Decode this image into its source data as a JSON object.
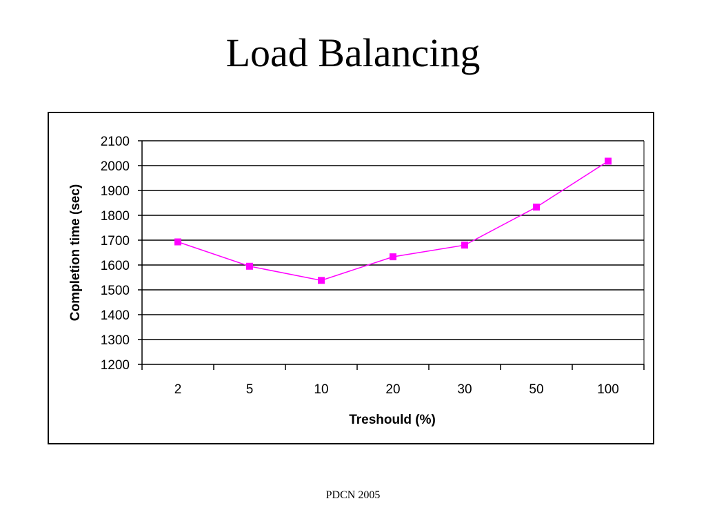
{
  "slide": {
    "title": "Load Balancing",
    "footer": "PDCN 2005"
  },
  "chart_data": {
    "type": "line",
    "categories": [
      "2",
      "5",
      "10",
      "20",
      "30",
      "50",
      "100"
    ],
    "series": [
      {
        "values": [
          1693,
          1595,
          1538,
          1633,
          1680,
          1833,
          2018
        ],
        "color": "#ff00ff",
        "marker": "square"
      }
    ],
    "xlabel": "Treshould (%)",
    "ylabel": "Completion time (sec)",
    "ylim": [
      1200,
      2100
    ],
    "yticks": [
      1200,
      1300,
      1400,
      1500,
      1600,
      1700,
      1800,
      1900,
      2000,
      2100
    ],
    "grid": true,
    "gridline_color": "#000000",
    "legend": "none"
  }
}
